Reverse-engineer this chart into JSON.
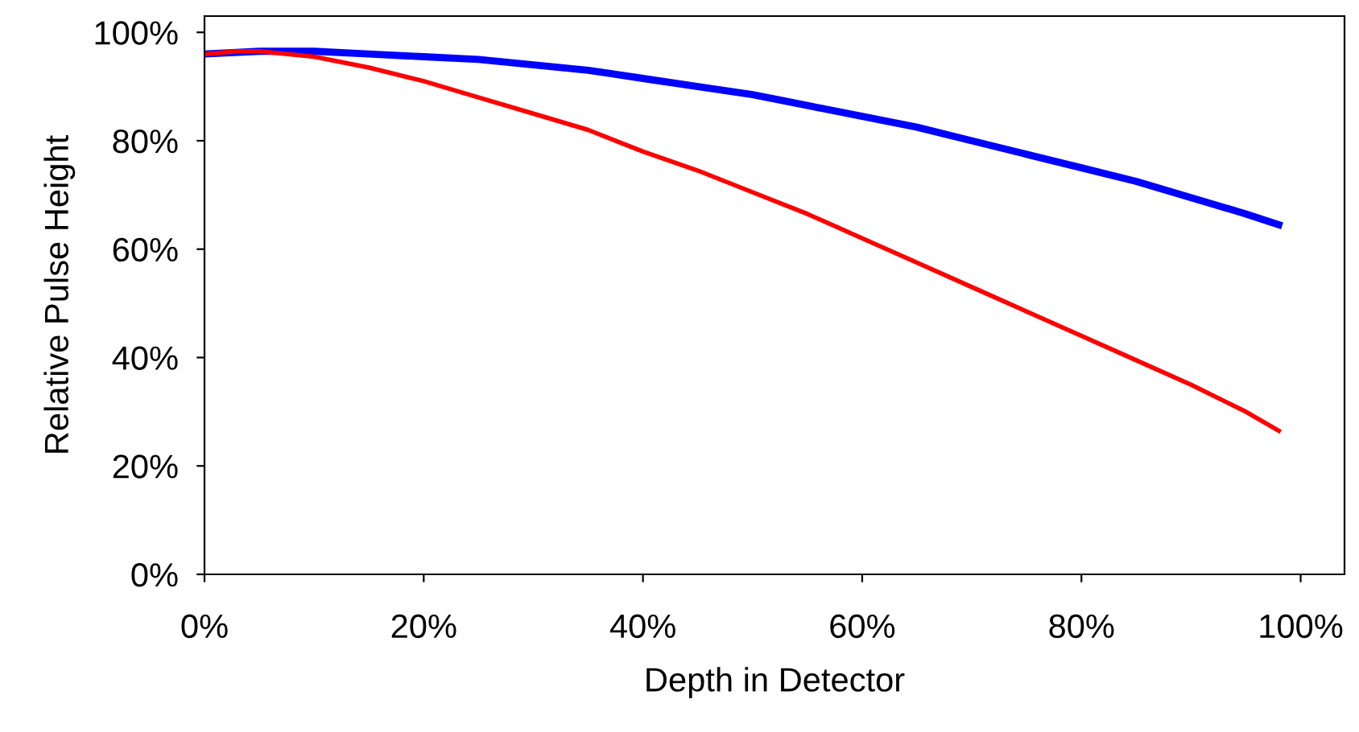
{
  "chart_data": {
    "type": "line",
    "xlabel": "Depth in Detector",
    "ylabel": "Relative Pulse Height",
    "series": [
      {
        "color": "#0000ff",
        "x": [
          0,
          5,
          10,
          15,
          20,
          25,
          30,
          35,
          40,
          45,
          50,
          55,
          60,
          65,
          70,
          75,
          80,
          85,
          90,
          95,
          98
        ],
        "values": [
          96,
          96.5,
          96.5,
          96,
          95.5,
          95,
          94,
          93,
          91.5,
          90,
          88.5,
          86.5,
          84.5,
          82.5,
          80,
          77.5,
          75,
          72.5,
          69.5,
          66.5,
          64.5
        ]
      },
      {
        "color": "#ff0000",
        "x": [
          0,
          3,
          5,
          10,
          15,
          20,
          25,
          30,
          35,
          40,
          45,
          50,
          55,
          60,
          65,
          70,
          75,
          80,
          85,
          90,
          95,
          98
        ],
        "values": [
          96,
          96.5,
          96.5,
          95.5,
          93.5,
          91,
          88,
          85,
          82,
          78,
          74.5,
          70.5,
          66.5,
          62,
          57.5,
          53,
          48.5,
          44,
          39.5,
          35,
          30,
          26.5
        ]
      }
    ],
    "xlim": [
      0,
      104
    ],
    "ylim": [
      0,
      103
    ],
    "xticks": [
      {
        "value": 0,
        "label": "0%"
      },
      {
        "value": 20,
        "label": "20%"
      },
      {
        "value": 40,
        "label": "40%"
      },
      {
        "value": 60,
        "label": "60%"
      },
      {
        "value": 80,
        "label": "80%"
      },
      {
        "value": 100,
        "label": "100%"
      }
    ],
    "yticks": [
      {
        "value": 0,
        "label": "0%"
      },
      {
        "value": 20,
        "label": "20%"
      },
      {
        "value": 40,
        "label": "40%"
      },
      {
        "value": 60,
        "label": "60%"
      },
      {
        "value": 80,
        "label": "80%"
      },
      {
        "value": 100,
        "label": "100%"
      }
    ],
    "grid": false,
    "legend": false,
    "marker": "none",
    "line_style": "solid"
  }
}
